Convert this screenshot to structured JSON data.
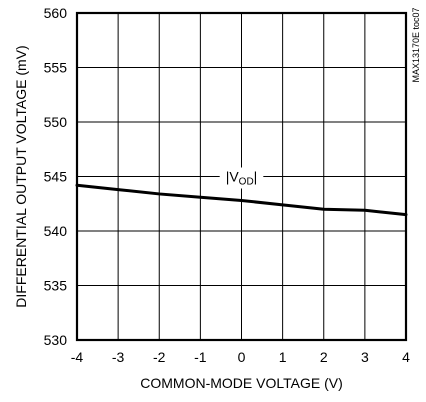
{
  "chart_data": {
    "type": "line",
    "title": "",
    "xlabel": "COMMON-MODE VOLTAGE (V)",
    "ylabel": "DIFFERENTIAL OUTPUT VOLTAGE (mV)",
    "xlim": [
      -4,
      4
    ],
    "ylim": [
      530,
      560
    ],
    "x_ticks": [
      -4,
      -3,
      -2,
      -1,
      0,
      1,
      2,
      3,
      4
    ],
    "y_ticks": [
      530,
      535,
      540,
      545,
      550,
      555,
      560
    ],
    "grid": true,
    "series": [
      {
        "name": "|VOD|",
        "x": [
          -4,
          -3,
          -2,
          -1,
          0,
          1,
          2,
          3,
          4
        ],
        "y": [
          544.2,
          543.8,
          543.4,
          543.1,
          542.8,
          542.4,
          542.0,
          541.9,
          541.5
        ]
      }
    ],
    "annotation": {
      "prefix": "|V",
      "sub": "OD",
      "suffix": "|",
      "x": 0,
      "y": 545
    },
    "side_code": "MAX13170E toc07"
  }
}
